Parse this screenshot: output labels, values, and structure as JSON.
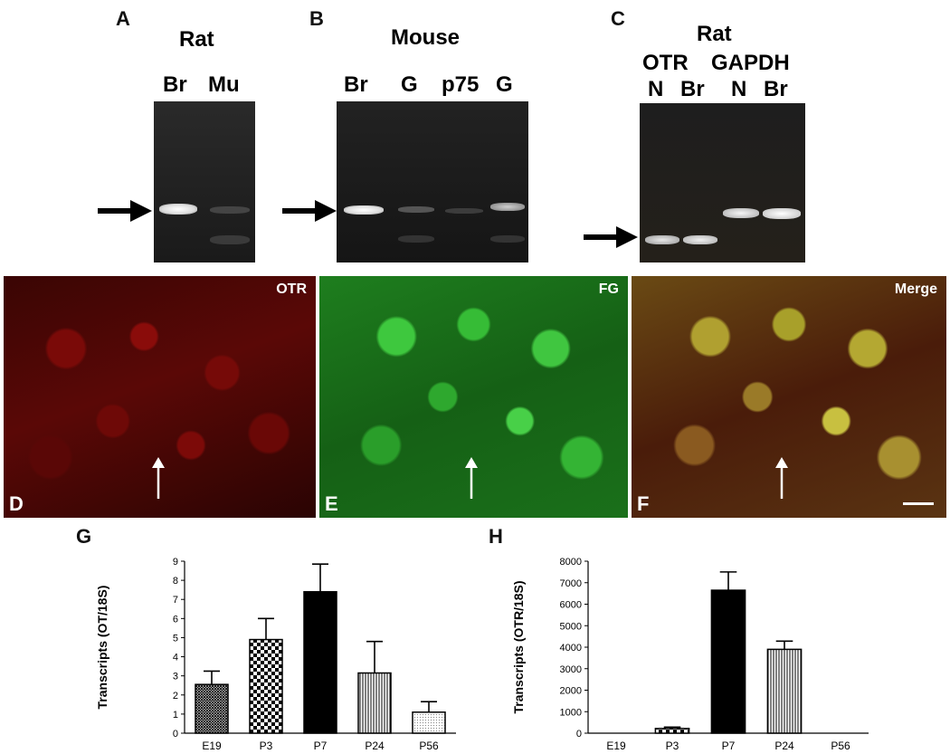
{
  "panels": {
    "A": {
      "letter": "A",
      "species": "Rat",
      "lanes": [
        "Br",
        "Mu"
      ]
    },
    "B": {
      "letter": "B",
      "species": "Mouse",
      "lanes": [
        "Br",
        "G",
        "p75",
        "G"
      ]
    },
    "C": {
      "letter": "C",
      "species": "Rat",
      "groups": [
        "OTR",
        "GAPDH"
      ],
      "lanes": [
        "N",
        "Br",
        "N",
        "Br"
      ]
    },
    "D": {
      "letter": "D",
      "label": "OTR"
    },
    "E": {
      "letter": "E",
      "label": "FG"
    },
    "F": {
      "letter": "F",
      "label": "Merge"
    },
    "G": {
      "letter": "G"
    },
    "H": {
      "letter": "H"
    }
  },
  "colors": {
    "otr": "#c8120c",
    "fg": "#28b428",
    "merge": "#8a7a20"
  },
  "chart_data": [
    {
      "type": "bar",
      "panel": "G",
      "categories": [
        "E19",
        "P3",
        "P7",
        "P24",
        "P56"
      ],
      "values": [
        2.55,
        4.9,
        7.4,
        3.15,
        1.1
      ],
      "errors": [
        0.7,
        1.1,
        1.45,
        1.65,
        0.55
      ],
      "ylabel": "Transcripts (OT/18S)",
      "ylim": [
        0,
        9
      ],
      "yticks": [
        "0",
        "1",
        "2",
        "3",
        "4",
        "5",
        "6",
        "7",
        "8",
        "9"
      ],
      "patterns": [
        "hatch-dense",
        "checker",
        "solid",
        "vlines",
        "dots"
      ]
    },
    {
      "type": "bar",
      "panel": "H",
      "categories": [
        "E19",
        "P3",
        "P7",
        "P24",
        "P56"
      ],
      "values": [
        0,
        220,
        6650,
        3900,
        0
      ],
      "errors": [
        0,
        60,
        850,
        380,
        0
      ],
      "ylabel": "Transcripts (OTR/18S)",
      "ylim": [
        0,
        8000
      ],
      "yticks": [
        "0",
        "1000",
        "2000",
        "3000",
        "4000",
        "5000",
        "6000",
        "7000",
        "8000"
      ],
      "patterns": [
        "none",
        "checker",
        "solid",
        "vlines",
        "none"
      ]
    }
  ]
}
